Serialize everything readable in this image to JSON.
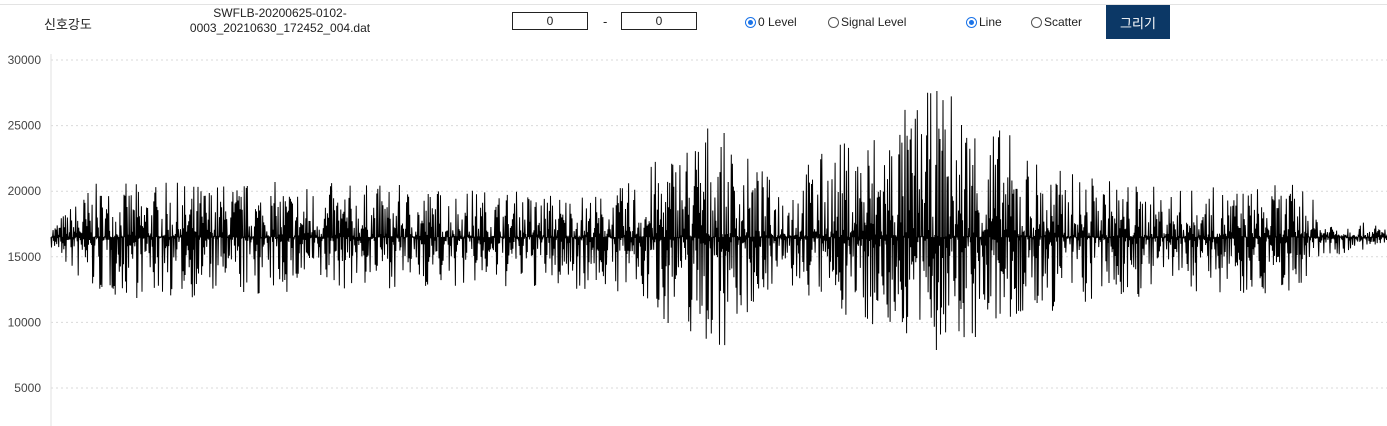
{
  "toolbar": {
    "title": "신호강도",
    "filename_line1": "SWFLB-20200625-0102-",
    "filename_line2": "0003_20210630_172452_004.dat",
    "range_start": "0",
    "range_separator": "-",
    "range_end": "0",
    "level_options": [
      {
        "label": "0 Level",
        "checked": true
      },
      {
        "label": "Signal Level",
        "checked": false
      }
    ],
    "type_options": [
      {
        "label": "Line",
        "checked": true
      },
      {
        "label": "Scatter",
        "checked": false
      }
    ],
    "draw_button": "그리기",
    "draw_button_color": "#0c3866"
  },
  "chart_data": {
    "type": "line",
    "title": "",
    "xlabel": "",
    "ylabel": "",
    "ylim": [
      3500,
      30000
    ],
    "yticks": [
      5000,
      10000,
      15000,
      20000,
      25000,
      30000
    ],
    "grid": "horizontal dotted",
    "line_color": "#000000",
    "x": [
      0,
      0.03,
      0.15,
      0.24,
      0.42,
      0.5,
      0.5,
      0.54,
      0.67,
      0.75,
      0.84,
      0.94,
      0.95,
      1
    ],
    "series": [
      {
        "baseline": 16500,
        "band_max": [
          17400,
          20600,
          20800,
          20600,
          19800,
          26400,
          24800,
          21000,
          28400,
          21800,
          20200,
          20600,
          18000,
          17400
        ],
        "band_min": [
          15600,
          11800,
          11800,
          12600,
          12400,
          7400,
          7600,
          12800,
          7200,
          10600,
          12400,
          12000,
          15000,
          15600
        ]
      }
    ]
  }
}
